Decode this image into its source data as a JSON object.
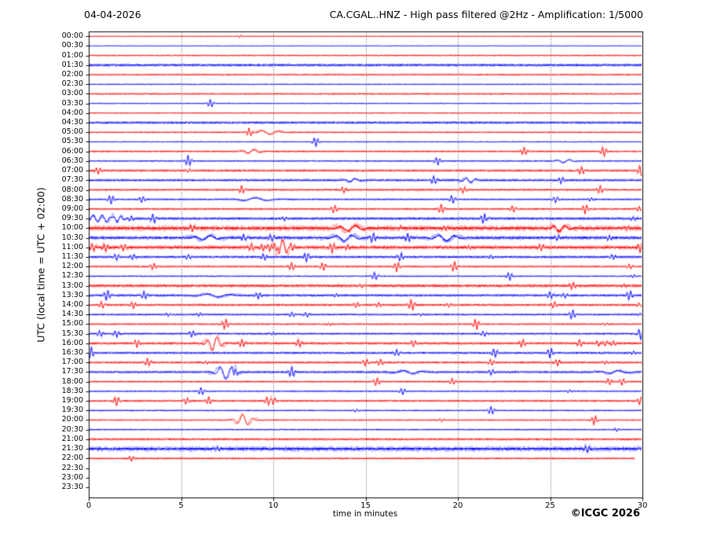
{
  "meta": {
    "date": "04-04-2026",
    "title": "CA.CGAL..HNZ - High pass filtered @2Hz - Amplification: 1/5000",
    "copyright": "©ICGC 2026"
  },
  "axes": {
    "y_label": "UTC (local time = UTC + 02:00)",
    "x_label": "time in minutes",
    "x_ticks": [
      0,
      5,
      10,
      15,
      20,
      25,
      30
    ],
    "x_range": [
      0,
      30
    ],
    "gridline_minutes": [
      5,
      10,
      15,
      20,
      25
    ],
    "grid_style": "dotted-vertical"
  },
  "chart_data": {
    "type": "helicorder-seismogram",
    "minutes_per_row": 30,
    "palette": {
      "red": "#ff0000",
      "red_light": "#ffb3b3",
      "blue": "#0000ff",
      "blue_light": "#b3b3ff",
      "frame": "#000000",
      "grid": "#444444"
    },
    "rows": [
      {
        "label": "00:00",
        "c": "red",
        "data": true,
        "noise": 0.3,
        "events": [
          [
            8.2,
            1.5
          ]
        ]
      },
      {
        "label": "00:30",
        "c": "blue",
        "data": true,
        "noise": 0.3,
        "events": []
      },
      {
        "label": "01:00",
        "c": "red",
        "data": true,
        "noise": 0.5,
        "events": []
      },
      {
        "label": "01:30",
        "c": "blue",
        "data": true,
        "noise": 0.9,
        "events": []
      },
      {
        "label": "02:00",
        "c": "red",
        "data": true,
        "noise": 0.5,
        "events": []
      },
      {
        "label": "02:30",
        "c": "blue",
        "data": true,
        "noise": 0.4,
        "events": []
      },
      {
        "label": "03:00",
        "c": "red",
        "data": true,
        "noise": 0.6,
        "events": []
      },
      {
        "label": "03:30",
        "c": "blue",
        "data": true,
        "noise": 0.4,
        "events": [
          [
            6.6,
            5
          ]
        ]
      },
      {
        "label": "04:00",
        "c": "red",
        "data": true,
        "noise": 0.4,
        "events": []
      },
      {
        "label": "04:30",
        "c": "blue",
        "data": true,
        "noise": 0.8,
        "events": []
      },
      {
        "label": "05:00",
        "c": "red",
        "data": true,
        "noise": 0.5,
        "events": [
          [
            8.7,
            5
          ],
          [
            9.7,
            2.5,
            0.7
          ]
        ]
      },
      {
        "label": "05:30",
        "c": "blue",
        "data": true,
        "noise": 0.4,
        "events": [
          [
            12.3,
            6
          ]
        ]
      },
      {
        "label": "06:00",
        "c": "red",
        "data": true,
        "noise": 0.6,
        "events": [
          [
            8.8,
            2.5,
            0.5
          ],
          [
            23.6,
            5
          ],
          [
            27.9,
            6
          ]
        ]
      },
      {
        "label": "06:30",
        "c": "blue",
        "data": true,
        "noise": 0.5,
        "events": [
          [
            5.4,
            7
          ],
          [
            18.9,
            5
          ],
          [
            25.8,
            2,
            0.5
          ]
        ]
      },
      {
        "label": "07:00",
        "c": "red",
        "data": true,
        "noise": 0.7,
        "events": [
          [
            0.5,
            4
          ],
          [
            5.4,
            2
          ],
          [
            26.7,
            5
          ],
          [
            29.9,
            7
          ]
        ]
      },
      {
        "label": "07:30",
        "c": "blue",
        "data": true,
        "noise": 0.8,
        "events": [
          [
            14.3,
            2,
            0.5
          ],
          [
            18.7,
            5
          ],
          [
            20.6,
            3,
            0.4
          ],
          [
            25.6,
            4
          ]
        ]
      },
      {
        "label": "08:00",
        "c": "red",
        "data": true,
        "noise": 0.7,
        "events": [
          [
            8.3,
            5
          ],
          [
            13.8,
            4
          ],
          [
            20.3,
            4
          ],
          [
            27.7,
            5
          ]
        ]
      },
      {
        "label": "08:30",
        "c": "blue",
        "data": true,
        "noise": 0.6,
        "events": [
          [
            1.2,
            6
          ],
          [
            2.9,
            4
          ],
          [
            9.0,
            2,
            1
          ],
          [
            19.7,
            5
          ],
          [
            25.3,
            4
          ],
          [
            27.2,
            2
          ]
        ]
      },
      {
        "label": "09:00",
        "c": "red",
        "data": true,
        "noise": 0.6,
        "events": [
          [
            13.3,
            5
          ],
          [
            19.1,
            6
          ],
          [
            23.0,
            4
          ],
          [
            26.9,
            6
          ],
          [
            29.8,
            3
          ]
        ]
      },
      {
        "label": "09:30",
        "c": "blue",
        "data": true,
        "noise": 0.9,
        "events": [
          [
            0.3,
            4,
            0.4
          ],
          [
            0.9,
            4,
            0.4
          ],
          [
            1.6,
            4,
            0.3
          ],
          [
            2.3,
            3
          ],
          [
            3.5,
            6
          ],
          [
            10.6,
            2
          ],
          [
            21.4,
            6
          ],
          [
            29.5,
            2
          ]
        ]
      },
      {
        "label": "10:00",
        "c": "red",
        "data": true,
        "noise": 1.5,
        "events": [
          [
            5.6,
            4
          ],
          [
            14.2,
            4,
            0.7
          ],
          [
            16.9,
            2
          ],
          [
            19.3,
            2
          ],
          [
            25.5,
            4,
            0.5
          ],
          [
            29.2,
            2
          ]
        ]
      },
      {
        "label": "10:30",
        "c": "blue",
        "data": true,
        "noise": 1.1,
        "events": [
          [
            6.4,
            3,
            0.7
          ],
          [
            8.4,
            4
          ],
          [
            9.9,
            4
          ],
          [
            13.9,
            4,
            0.7
          ],
          [
            15.4,
            6
          ],
          [
            17.3,
            5
          ],
          [
            19.3,
            4,
            0.7
          ],
          [
            25.4,
            3
          ],
          [
            28.2,
            3
          ]
        ]
      },
      {
        "label": "11:00",
        "c": "red",
        "data": true,
        "noise": 1.2,
        "events": [
          [
            0.2,
            5
          ],
          [
            0.9,
            5
          ],
          [
            1.9,
            4
          ],
          [
            8.8,
            5
          ],
          [
            9.4,
            4
          ],
          [
            9.8,
            4
          ],
          [
            10.2,
            5
          ],
          [
            10.5,
            9,
            0.35
          ],
          [
            11.0,
            4
          ],
          [
            13.2,
            6
          ],
          [
            14.0,
            3
          ],
          [
            20.6,
            2
          ],
          [
            24.5,
            4
          ],
          [
            29.9,
            6
          ]
        ]
      },
      {
        "label": "11:30",
        "c": "blue",
        "data": true,
        "noise": 0.8,
        "events": [
          [
            1.5,
            4
          ],
          [
            2.4,
            3
          ],
          [
            5.4,
            3
          ],
          [
            9.5,
            4
          ],
          [
            11.8,
            6
          ],
          [
            16.9,
            5
          ],
          [
            21.8,
            2
          ],
          [
            28.4,
            3
          ]
        ]
      },
      {
        "label": "12:00",
        "c": "red",
        "data": true,
        "noise": 0.6,
        "events": [
          [
            3.5,
            4
          ],
          [
            11.0,
            5
          ],
          [
            12.7,
            5
          ],
          [
            16.7,
            6
          ],
          [
            19.8,
            6
          ],
          [
            29.3,
            3
          ]
        ]
      },
      {
        "label": "12:30",
        "c": "blue",
        "data": true,
        "noise": 0.5,
        "events": [
          [
            15.5,
            5
          ],
          [
            22.8,
            5
          ],
          [
            29.5,
            2
          ]
        ]
      },
      {
        "label": "13:00",
        "c": "red",
        "data": true,
        "noise": 1.0,
        "events": [
          [
            14.8,
            2
          ],
          [
            26.2,
            4
          ],
          [
            29.0,
            2
          ]
        ]
      },
      {
        "label": "13:30",
        "c": "blue",
        "data": true,
        "noise": 0.8,
        "events": [
          [
            1.0,
            7
          ],
          [
            3.0,
            5
          ],
          [
            6.8,
            2,
            1
          ],
          [
            9.2,
            4
          ],
          [
            13.4,
            2
          ],
          [
            25.0,
            4
          ],
          [
            25.8,
            3
          ],
          [
            29.3,
            6
          ]
        ]
      },
      {
        "label": "14:00",
        "c": "red",
        "data": true,
        "noise": 0.7,
        "events": [
          [
            0.7,
            4
          ],
          [
            2.4,
            4
          ],
          [
            14.5,
            3
          ],
          [
            15.7,
            3
          ],
          [
            17.5,
            7
          ],
          [
            19.5,
            2
          ],
          [
            25.2,
            4
          ],
          [
            29.8,
            2
          ]
        ]
      },
      {
        "label": "14:30",
        "c": "blue",
        "data": true,
        "noise": 0.6,
        "events": [
          [
            4.3,
            2
          ],
          [
            6.0,
            2
          ],
          [
            11.0,
            3
          ],
          [
            11.8,
            3
          ],
          [
            18.0,
            1.5
          ],
          [
            26.2,
            6
          ],
          [
            29.9,
            2
          ]
        ]
      },
      {
        "label": "15:00",
        "c": "red",
        "data": true,
        "noise": 0.6,
        "events": [
          [
            7.4,
            7
          ],
          [
            13.0,
            1.5
          ],
          [
            21.0,
            7
          ],
          [
            28.0,
            1.5
          ]
        ]
      },
      {
        "label": "15:30",
        "c": "blue",
        "data": true,
        "noise": 0.7,
        "events": [
          [
            0.6,
            4
          ],
          [
            1.5,
            4
          ],
          [
            5.6,
            4
          ],
          [
            10.0,
            1.5
          ],
          [
            21.4,
            3
          ],
          [
            29.9,
            7
          ]
        ]
      },
      {
        "label": "16:00",
        "c": "red",
        "data": true,
        "noise": 0.8,
        "events": [
          [
            2.6,
            5
          ],
          [
            6.8,
            9,
            0.4
          ],
          [
            8.3,
            5
          ],
          [
            11.4,
            5
          ],
          [
            17.6,
            4
          ],
          [
            23.5,
            5
          ],
          [
            26.6,
            4
          ],
          [
            27.6,
            3
          ],
          [
            28.0,
            3
          ],
          [
            28.4,
            3
          ]
        ]
      },
      {
        "label": "16:30",
        "c": "blue",
        "data": true,
        "noise": 0.7,
        "events": [
          [
            0.1,
            7
          ],
          [
            16.7,
            4
          ],
          [
            22.0,
            6
          ],
          [
            25.0,
            6
          ],
          [
            29.5,
            2
          ]
        ]
      },
      {
        "label": "17:00",
        "c": "red",
        "data": true,
        "noise": 0.7,
        "events": [
          [
            3.2,
            5
          ],
          [
            6.4,
            2
          ],
          [
            15.0,
            4
          ],
          [
            15.8,
            4
          ],
          [
            21.8,
            4
          ],
          [
            25.4,
            4
          ],
          [
            28.0,
            2
          ]
        ]
      },
      {
        "label": "17:30",
        "c": "blue",
        "data": true,
        "noise": 0.8,
        "events": [
          [
            7.4,
            8,
            0.5
          ],
          [
            7.9,
            5
          ],
          [
            11.0,
            7
          ],
          [
            17.3,
            2,
            0.8
          ],
          [
            21.8,
            4
          ],
          [
            28.5,
            2,
            0.8
          ]
        ]
      },
      {
        "label": "18:00",
        "c": "red",
        "data": true,
        "noise": 0.6,
        "events": [
          [
            15.6,
            5
          ],
          [
            19.7,
            4
          ],
          [
            28.2,
            4
          ],
          [
            28.9,
            4
          ]
        ]
      },
      {
        "label": "18:30",
        "c": "blue",
        "data": true,
        "noise": 0.5,
        "events": [
          [
            6.1,
            5
          ],
          [
            17.0,
            4
          ],
          [
            26.0,
            1.5
          ]
        ]
      },
      {
        "label": "19:00",
        "c": "red",
        "data": true,
        "noise": 0.6,
        "events": [
          [
            1.5,
            6
          ],
          [
            5.3,
            4
          ],
          [
            6.5,
            5
          ],
          [
            9.7,
            5
          ],
          [
            10.0,
            5
          ],
          [
            29.9,
            5
          ]
        ]
      },
      {
        "label": "19:30",
        "c": "blue",
        "data": true,
        "noise": 0.5,
        "events": [
          [
            14.5,
            1.5
          ],
          [
            21.8,
            5
          ]
        ]
      },
      {
        "label": "20:00",
        "c": "red",
        "data": true,
        "noise": 0.5,
        "events": [
          [
            8.4,
            7,
            0.45
          ],
          [
            19.1,
            2
          ],
          [
            27.4,
            6
          ]
        ]
      },
      {
        "label": "20:30",
        "c": "blue",
        "data": true,
        "noise": 0.5,
        "events": [
          [
            28.6,
            2
          ]
        ]
      },
      {
        "label": "21:00",
        "c": "red",
        "data": true,
        "noise": 0.7,
        "events": []
      },
      {
        "label": "21:30",
        "c": "blue",
        "data": true,
        "noise": 1.4,
        "events": [
          [
            7.0,
            2
          ],
          [
            27.0,
            4
          ]
        ]
      },
      {
        "label": "22:00",
        "c": "red",
        "data": true,
        "noise": 0.6,
        "end": 29.6,
        "events": [
          [
            2.3,
            3
          ]
        ]
      },
      {
        "label": "22:30",
        "c": "blue",
        "data": false,
        "noise": 0,
        "events": []
      },
      {
        "label": "23:00",
        "c": "red",
        "data": false,
        "noise": 0,
        "events": []
      },
      {
        "label": "23:30",
        "c": "blue",
        "data": false,
        "noise": 0,
        "events": []
      }
    ]
  }
}
